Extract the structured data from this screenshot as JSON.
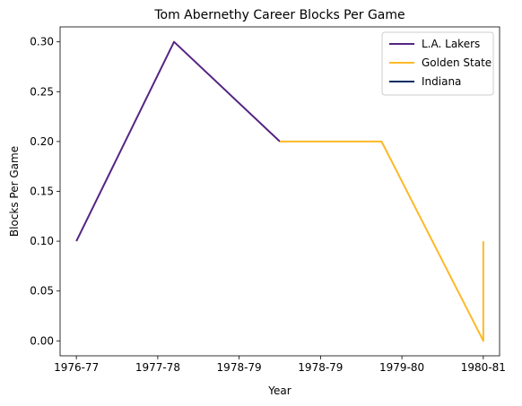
{
  "chart_data": {
    "type": "line",
    "title": "Tom Abernethy Career Blocks Per Game",
    "xlabel": "Year",
    "ylabel": "Blocks Per Game",
    "x_ticks": [
      "1976-77",
      "1977-78",
      "1978-79",
      "1978-79",
      "1979-80",
      "1980-81"
    ],
    "xlim": [
      -0.2,
      5.2
    ],
    "ylim": [
      -0.015,
      0.315
    ],
    "y_ticks": [
      0.0,
      0.05,
      0.1,
      0.15,
      0.2,
      0.25,
      0.3
    ],
    "y_tick_labels": [
      "0.00",
      "0.05",
      "0.10",
      "0.15",
      "0.20",
      "0.25",
      "0.30"
    ],
    "grid": false,
    "legend_position": "top-right",
    "series": [
      {
        "name": "L.A. Lakers",
        "color": "#552583",
        "points": [
          [
            0,
            0.1
          ],
          [
            1.2,
            0.3
          ],
          [
            2.5,
            0.2
          ]
        ]
      },
      {
        "name": "Golden State",
        "color": "#FDB927",
        "points": [
          [
            2.5,
            0.2
          ],
          [
            3.75,
            0.2
          ],
          [
            5,
            0.0
          ],
          [
            5,
            0.1
          ]
        ]
      },
      {
        "name": "Indiana",
        "color": "#002D62",
        "points": []
      }
    ]
  }
}
